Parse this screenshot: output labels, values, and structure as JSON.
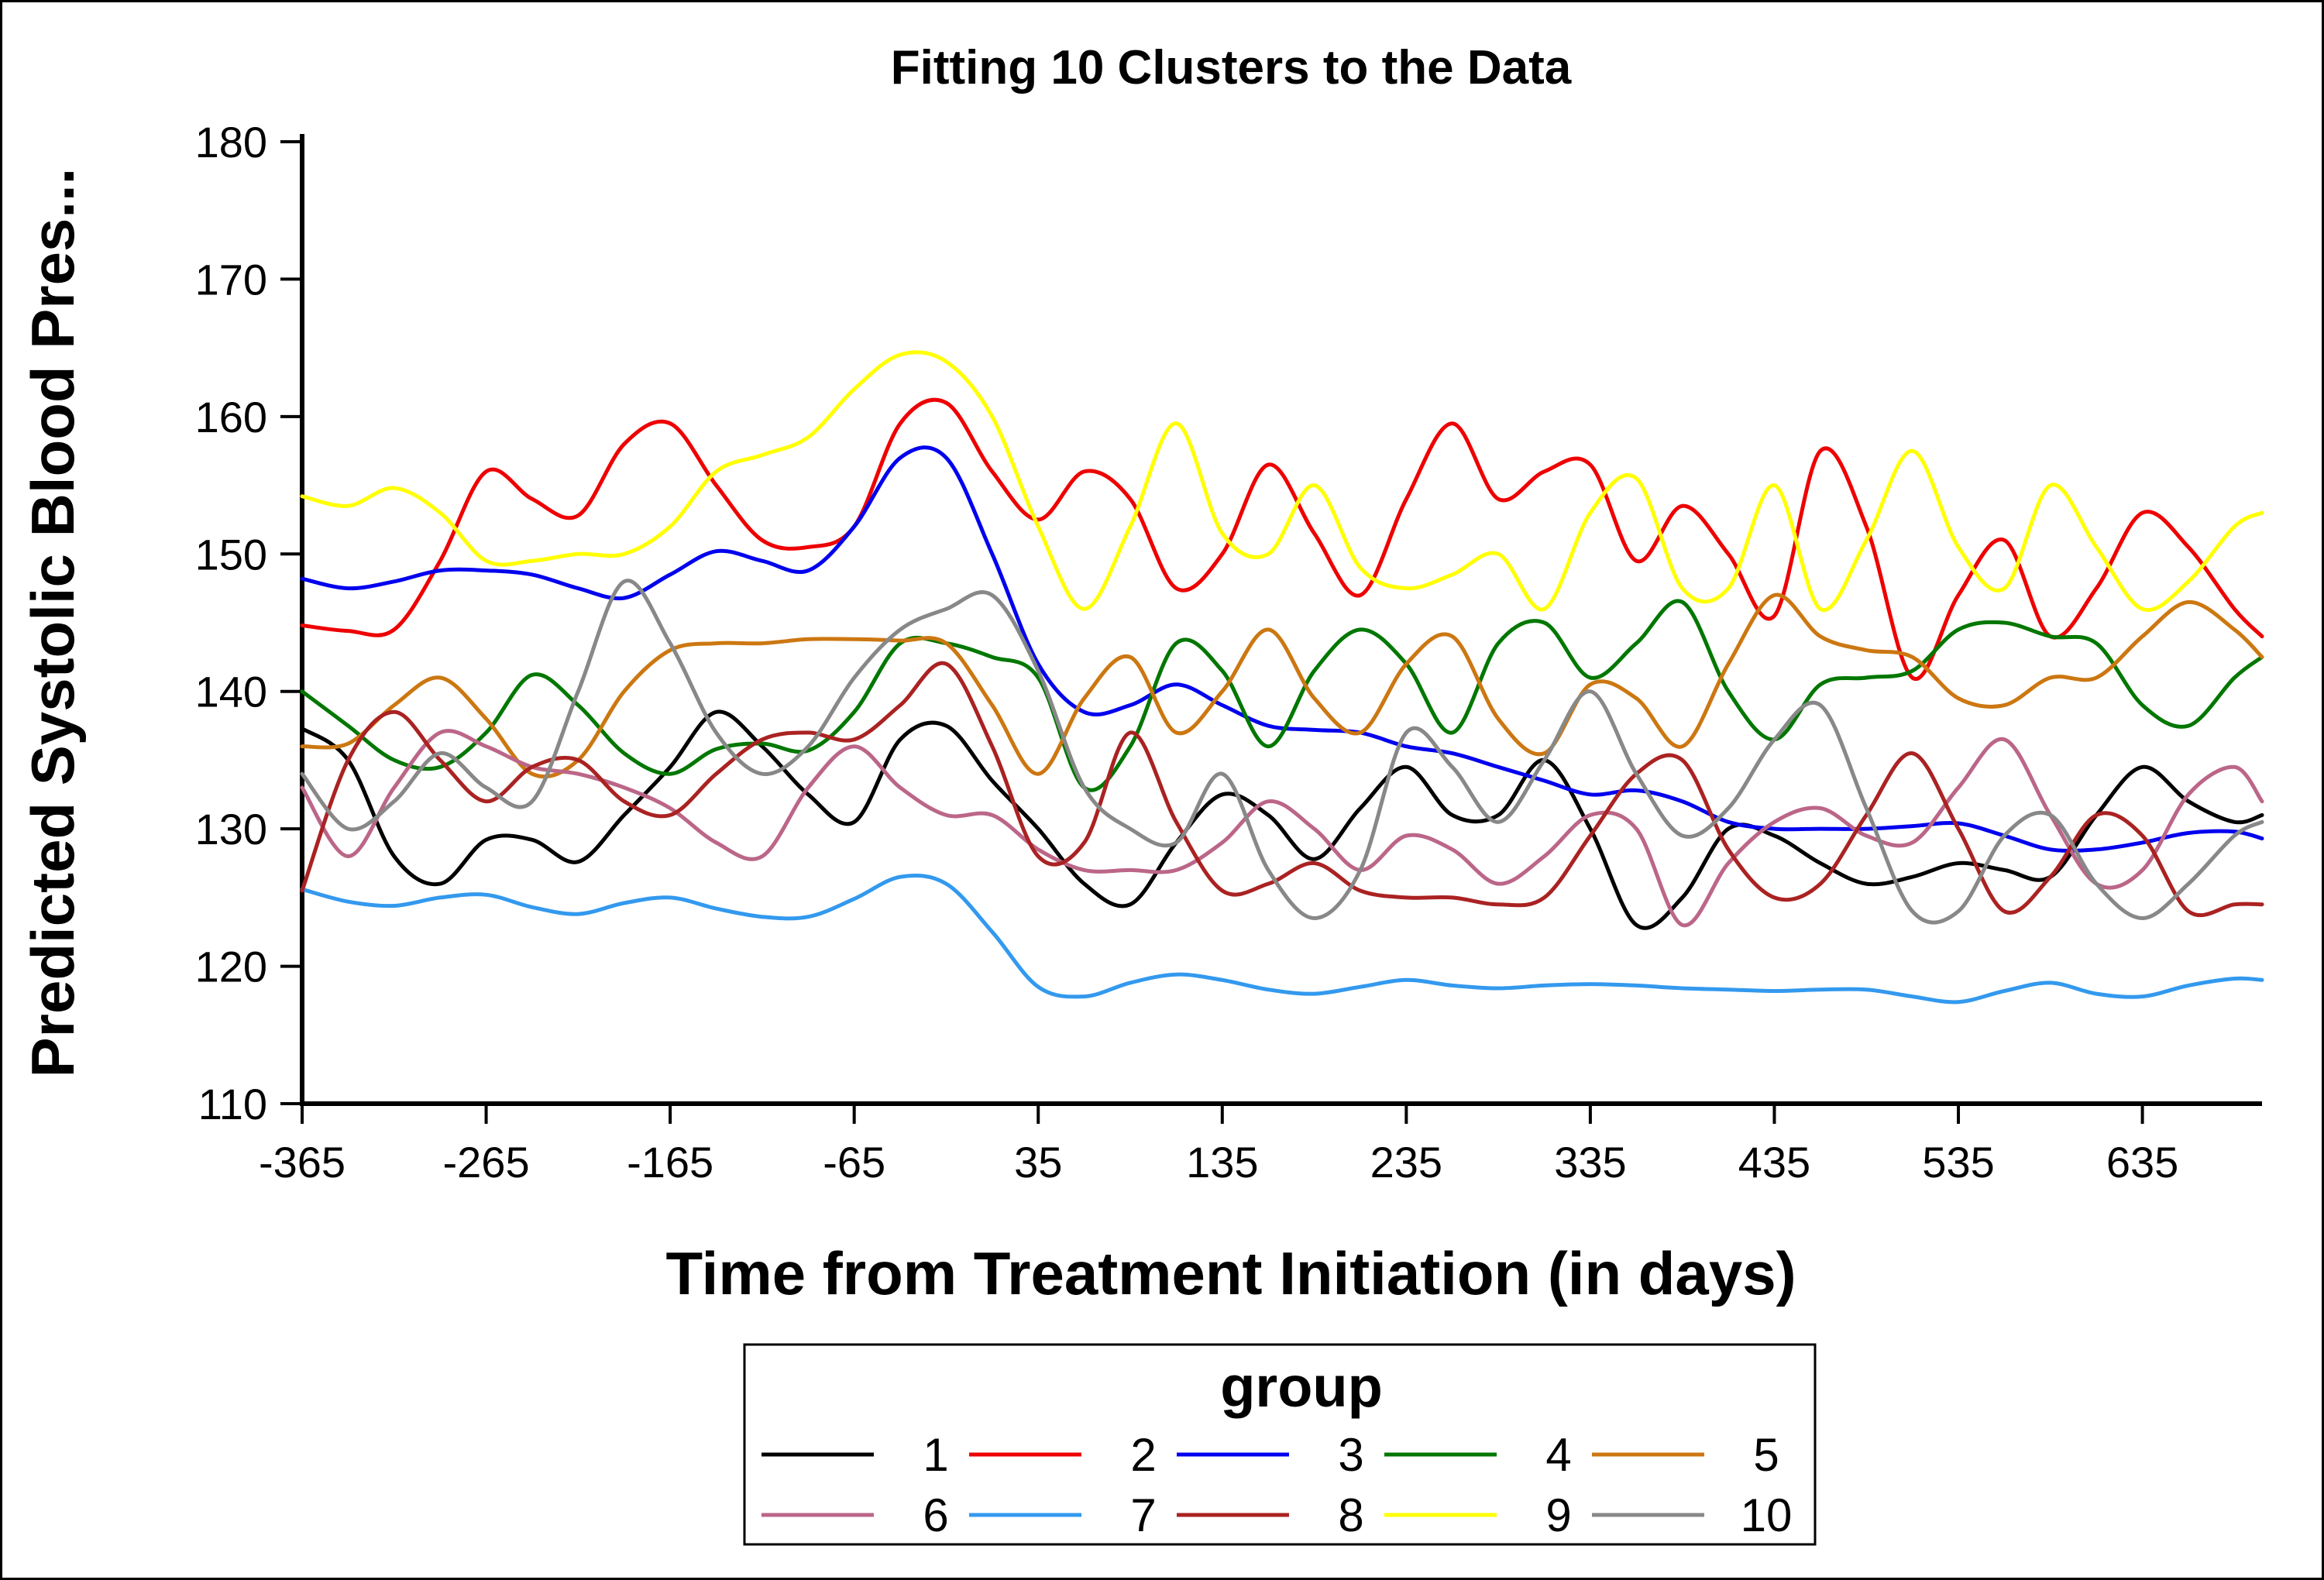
{
  "chart_data": {
    "type": "line",
    "title": "Fitting 10 Clusters to the Data",
    "xlabel": "Time from Treatment Initiation (in days)",
    "ylabel": "Predicted Systolic Blood Pres...",
    "xlim": [
      -365,
      700
    ],
    "ylim": [
      110,
      180
    ],
    "xticks": [
      -365,
      -265,
      -165,
      -65,
      35,
      135,
      235,
      335,
      435,
      535,
      635
    ],
    "yticks": [
      110,
      120,
      130,
      140,
      150,
      160,
      170,
      180
    ],
    "grid": false,
    "legend": {
      "title": "group",
      "placement": "bottom"
    },
    "x": [
      -365,
      -340,
      -315,
      -290,
      -265,
      -240,
      -215,
      -190,
      -165,
      -140,
      -115,
      -90,
      -65,
      -40,
      -15,
      10,
      35,
      60,
      85,
      110,
      135,
      160,
      185,
      210,
      235,
      260,
      285,
      310,
      335,
      360,
      385,
      410,
      435,
      460,
      485,
      510,
      535,
      560,
      585,
      610,
      635,
      660,
      685,
      700
    ],
    "series": [
      {
        "name": "1",
        "color": "#000000",
        "values": [
          137.3,
          135.0,
          128.0,
          126.0,
          129.2,
          129.2,
          127.6,
          131.0,
          134.5,
          138.5,
          136.0,
          132.5,
          130.5,
          136.5,
          137.5,
          133.5,
          130.0,
          126.0,
          124.5,
          129.0,
          132.5,
          131.0,
          127.8,
          131.5,
          134.5,
          131.0,
          131.0,
          135.0,
          130.0,
          123.0,
          125.0,
          130.0,
          129.5,
          127.5,
          126.0,
          126.5,
          127.5,
          127.0,
          126.5,
          131.0,
          134.5,
          132.0,
          130.5,
          131.0
        ]
      },
      {
        "name": "2",
        "color": "#ee0000",
        "values": [
          144.8,
          144.4,
          144.5,
          149.5,
          156.0,
          154.0,
          152.8,
          158.0,
          159.5,
          155.0,
          151.0,
          150.5,
          152.0,
          159.5,
          161.0,
          156.0,
          152.5,
          156.0,
          154.0,
          147.5,
          150.0,
          156.5,
          151.5,
          147.0,
          154.0,
          159.5,
          154.0,
          156.0,
          156.5,
          149.5,
          153.5,
          150.0,
          145.5,
          157.5,
          152.0,
          141.0,
          147.0,
          151.0,
          144.0,
          147.5,
          153.0,
          150.5,
          146.0,
          144.0
        ]
      },
      {
        "name": "3",
        "color": "#0000ee",
        "values": [
          148.2,
          147.5,
          148.0,
          148.8,
          148.8,
          148.5,
          147.5,
          146.8,
          148.5,
          150.2,
          149.5,
          148.8,
          152.0,
          157.0,
          157.0,
          150.0,
          142.0,
          138.5,
          139.0,
          140.5,
          139.0,
          137.5,
          137.2,
          137.0,
          136.0,
          135.5,
          134.5,
          133.5,
          132.5,
          132.8,
          132.0,
          130.5,
          130.0,
          130.0,
          130.0,
          130.2,
          130.4,
          129.5,
          128.5,
          128.5,
          129.0,
          129.7,
          129.8,
          129.3
        ]
      },
      {
        "name": "4",
        "color": "#007700",
        "values": [
          140.0,
          137.5,
          135.0,
          134.5,
          137.0,
          141.2,
          139.0,
          135.5,
          134.0,
          135.8,
          136.2,
          135.7,
          138.5,
          143.5,
          143.5,
          142.5,
          141.0,
          133.0,
          136.0,
          143.5,
          141.5,
          136.0,
          141.5,
          144.5,
          142.0,
          137.0,
          143.5,
          145.0,
          141.0,
          143.5,
          146.5,
          140.0,
          136.5,
          140.5,
          141.0,
          141.5,
          144.5,
          145.0,
          144.0,
          143.5,
          139.0,
          137.5,
          141.0,
          142.5
        ]
      },
      {
        "name": "5",
        "color": "#cc7711",
        "values": [
          136.0,
          136.2,
          139.0,
          141.0,
          138.0,
          134.0,
          135.0,
          140.0,
          143.0,
          143.5,
          143.5,
          143.8,
          143.8,
          143.7,
          143.5,
          139.0,
          134.0,
          139.5,
          142.5,
          137.0,
          140.0,
          144.5,
          139.5,
          137.0,
          142.0,
          144.0,
          138.0,
          135.5,
          140.5,
          139.5,
          136.0,
          142.0,
          147.0,
          144.0,
          143.0,
          142.5,
          139.5,
          139.0,
          141.0,
          141.0,
          144.0,
          146.5,
          144.5,
          142.5
        ]
      },
      {
        "name": "6",
        "color": "#bb6688",
        "values": [
          133.0,
          128.0,
          133.0,
          137.0,
          136.0,
          134.5,
          134.0,
          133.0,
          131.5,
          129.0,
          128.0,
          133.0,
          136.0,
          133.0,
          131.0,
          131.0,
          128.5,
          127.0,
          127.0,
          127.0,
          129.0,
          132.0,
          130.0,
          127.0,
          129.5,
          128.5,
          126.0,
          128.0,
          131.0,
          130.0,
          123.0,
          127.5,
          130.5,
          131.5,
          129.5,
          129.0,
          133.0,
          136.5,
          131.0,
          126.0,
          127.0,
          132.5,
          134.5,
          132.0
        ]
      },
      {
        "name": "7",
        "color": "#3399ee",
        "values": [
          125.6,
          124.7,
          124.4,
          125.0,
          125.2,
          124.3,
          123.8,
          124.6,
          125.0,
          124.2,
          123.6,
          123.6,
          124.9,
          126.5,
          126.0,
          122.5,
          118.5,
          117.8,
          118.8,
          119.4,
          119.0,
          118.3,
          118.0,
          118.5,
          119.0,
          118.6,
          118.4,
          118.6,
          118.7,
          118.6,
          118.4,
          118.3,
          118.2,
          118.3,
          118.3,
          117.8,
          117.4,
          118.2,
          118.8,
          118.0,
          117.8,
          118.6,
          119.1,
          119.0
        ]
      },
      {
        "name": "8",
        "color": "#aa2222",
        "values": [
          125.5,
          135.0,
          138.5,
          135.0,
          132.0,
          134.5,
          135.0,
          132.0,
          131.0,
          134.0,
          136.5,
          137.0,
          136.5,
          139.0,
          142.0,
          136.0,
          128.0,
          129.0,
          137.0,
          130.5,
          125.5,
          126.0,
          127.5,
          125.5,
          125.0,
          125.0,
          124.5,
          125.0,
          129.5,
          134.0,
          135.0,
          128.5,
          125.0,
          126.0,
          131.0,
          135.5,
          130.0,
          124.0,
          126.5,
          131.0,
          129.5,
          124.0,
          124.5,
          124.5
        ]
      },
      {
        "name": "9",
        "color": "#ffff00",
        "values": [
          154.2,
          153.5,
          154.8,
          153.0,
          149.5,
          149.5,
          150.0,
          150.0,
          152.0,
          156.0,
          157.2,
          158.5,
          162.0,
          164.5,
          164.0,
          160.0,
          152.0,
          146.0,
          152.0,
          159.5,
          151.5,
          150.0,
          155.0,
          149.0,
          147.5,
          148.5,
          150.0,
          146.0,
          153.0,
          155.5,
          147.5,
          147.5,
          155.0,
          146.0,
          151.0,
          157.5,
          150.5,
          147.5,
          155.0,
          150.5,
          146.0,
          148.0,
          152.0,
          153.0
        ]
      },
      {
        "name": "10",
        "color": "#888888",
        "values": [
          134.0,
          130.0,
          132.0,
          135.5,
          133.0,
          132.0,
          140.0,
          148.0,
          143.5,
          137.0,
          134.0,
          136.0,
          141.0,
          144.5,
          146.0,
          147.0,
          141.5,
          133.0,
          130.0,
          129.0,
          134.0,
          127.0,
          123.5,
          127.0,
          137.0,
          134.5,
          130.5,
          135.0,
          140.0,
          134.0,
          129.5,
          131.5,
          136.5,
          139.0,
          131.5,
          124.0,
          124.0,
          129.5,
          131.0,
          126.0,
          123.5,
          126.0,
          129.5,
          130.5
        ]
      }
    ]
  }
}
